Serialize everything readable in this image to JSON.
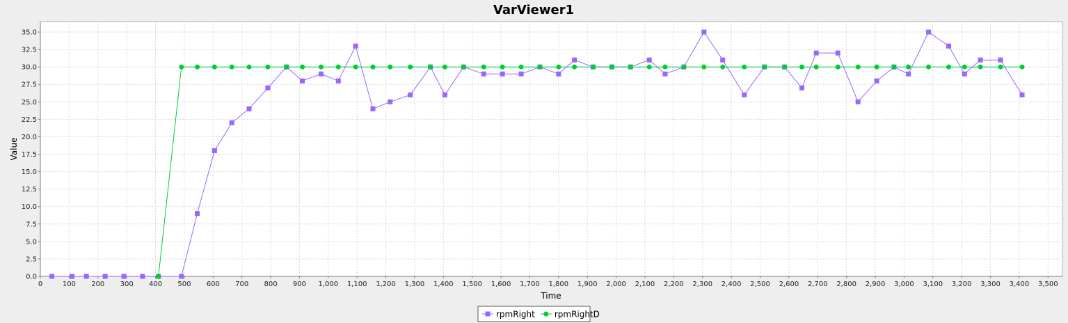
{
  "chart_data": {
    "type": "line",
    "title": "VarViewer1",
    "xlabel": "Time",
    "ylabel": "Value",
    "xlim": [
      0,
      3550
    ],
    "ylim": [
      0,
      36.5
    ],
    "x_ticks": [
      0,
      100,
      200,
      300,
      400,
      500,
      600,
      700,
      800,
      900,
      1000,
      1100,
      1200,
      1300,
      1400,
      1500,
      1600,
      1700,
      1800,
      1900,
      2000,
      2100,
      2200,
      2300,
      2400,
      2500,
      2600,
      2700,
      2800,
      2900,
      3000,
      3100,
      3200,
      3300,
      3400,
      3500
    ],
    "x_tick_labels": [
      "0",
      "100",
      "200",
      "300",
      "400",
      "500",
      "600",
      "700",
      "800",
      "900",
      "1,000",
      "1,100",
      "1,200",
      "1,300",
      "1,400",
      "1,500",
      "1,600",
      "1,700",
      "1,800",
      "1,900",
      "2,000",
      "2,100",
      "2,200",
      "2,300",
      "2,400",
      "2,500",
      "2,600",
      "2,700",
      "2,800",
      "2,900",
      "3,000",
      "3,100",
      "3,200",
      "3,300",
      "3,400",
      "3,500"
    ],
    "y_ticks": [
      0,
      2.5,
      5,
      7.5,
      10,
      12.5,
      15,
      17.5,
      20,
      22.5,
      25,
      27.5,
      30,
      32.5,
      35
    ],
    "y_tick_labels": [
      "0.0",
      "2.5",
      "5.0",
      "7.5",
      "10.0",
      "12.5",
      "15.0",
      "17.5",
      "20.0",
      "22.5",
      "25.0",
      "27.5",
      "30.0",
      "32.5",
      "35.0"
    ],
    "grid": true,
    "legend_position": "bottom-center",
    "series": [
      {
        "name": "rpmRight",
        "color": "#9966ff",
        "marker": "square",
        "x": [
          40,
          110,
          160,
          225,
          290,
          355,
          410,
          490,
          545,
          605,
          665,
          725,
          790,
          855,
          910,
          975,
          1035,
          1095,
          1155,
          1215,
          1285,
          1355,
          1405,
          1470,
          1540,
          1605,
          1670,
          1735,
          1800,
          1855,
          1920,
          1985,
          2050,
          2115,
          2170,
          2235,
          2305,
          2370,
          2445,
          2515,
          2585,
          2645,
          2695,
          2770,
          2840,
          2905,
          2965,
          3015,
          3085,
          3155,
          3210,
          3265,
          3335,
          3410
        ],
        "y": [
          0,
          0,
          0,
          0,
          0,
          0,
          0,
          0,
          9,
          18,
          22,
          24,
          27,
          30,
          28,
          29,
          28,
          33,
          24,
          25,
          26,
          30,
          26,
          30,
          29,
          29,
          29,
          30,
          29,
          31,
          30,
          30,
          30,
          31,
          29,
          30,
          35,
          31,
          26,
          30,
          30,
          27,
          32,
          32,
          25,
          28,
          30,
          29,
          35,
          33,
          29,
          31,
          31,
          26
        ]
      },
      {
        "name": "rpmRightD",
        "color": "#00cc33",
        "marker": "circle",
        "x": [
          410,
          490,
          545,
          605,
          665,
          725,
          790,
          855,
          910,
          975,
          1035,
          1095,
          1155,
          1215,
          1285,
          1355,
          1405,
          1470,
          1540,
          1605,
          1670,
          1735,
          1800,
          1855,
          1920,
          1985,
          2050,
          2115,
          2170,
          2235,
          2305,
          2370,
          2445,
          2515,
          2585,
          2645,
          2695,
          2770,
          2840,
          2905,
          2965,
          3015,
          3085,
          3155,
          3210,
          3265,
          3335,
          3410
        ],
        "y": [
          0,
          30,
          30,
          30,
          30,
          30,
          30,
          30,
          30,
          30,
          30,
          30,
          30,
          30,
          30,
          30,
          30,
          30,
          30,
          30,
          30,
          30,
          30,
          30,
          30,
          30,
          30,
          30,
          30,
          30,
          30,
          30,
          30,
          30,
          30,
          30,
          30,
          30,
          30,
          30,
          30,
          30,
          30,
          30,
          30,
          30,
          30,
          30
        ]
      }
    ]
  }
}
